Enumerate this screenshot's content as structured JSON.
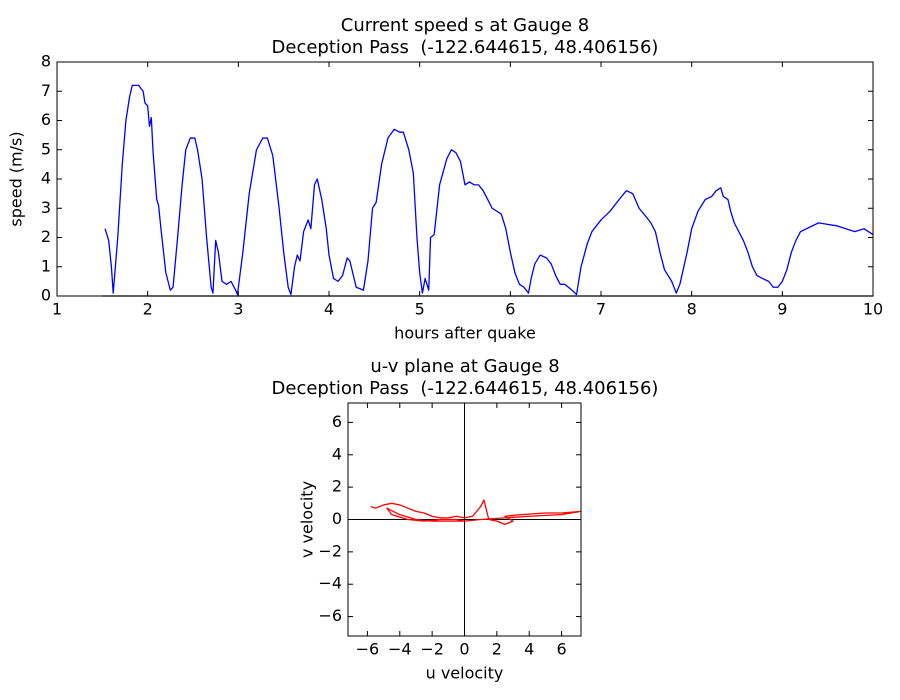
{
  "chart_data": [
    {
      "type": "line",
      "title": "Current speed s at Gauge 8",
      "subtitle": "Deception Pass  (-122.644615, 48.406156)",
      "x_label": "hours after quake",
      "y_label": "speed (m/s)",
      "xlim": [
        1,
        10
      ],
      "ylim": [
        0,
        8
      ],
      "xticks": [
        1,
        2,
        3,
        4,
        5,
        6,
        7,
        8,
        9,
        10
      ],
      "yticks": [
        0,
        1,
        2,
        3,
        4,
        5,
        6,
        7,
        8
      ],
      "series": [
        {
          "color": "#0000ff",
          "x": [
            1.53,
            1.57,
            1.6,
            1.62,
            1.67,
            1.72,
            1.76,
            1.8,
            1.83,
            1.9,
            1.95,
            1.97,
            2.0,
            2.02,
            2.04,
            2.06,
            2.1,
            2.12,
            2.15,
            2.2,
            2.25,
            2.28,
            2.33,
            2.38,
            2.42,
            2.47,
            2.52,
            2.55,
            2.6,
            2.65,
            2.7,
            2.72,
            2.75,
            2.78,
            2.82,
            2.87,
            2.92,
            2.97,
            2.99,
            3.05,
            3.12,
            3.2,
            3.27,
            3.32,
            3.38,
            3.45,
            3.5,
            3.55,
            3.58,
            3.62,
            3.65,
            3.68,
            3.72,
            3.77,
            3.8,
            3.84,
            3.87,
            3.92,
            3.97,
            4.0,
            4.05,
            4.1,
            4.15,
            4.2,
            4.23,
            4.3,
            4.38,
            4.43,
            4.48,
            4.52,
            4.58,
            4.65,
            4.72,
            4.78,
            4.82,
            4.88,
            4.93,
            4.97,
            5.0,
            5.03,
            5.06,
            5.1,
            5.12,
            5.16,
            5.22,
            5.3,
            5.35,
            5.4,
            5.45,
            5.5,
            5.55,
            5.6,
            5.65,
            5.7,
            5.75,
            5.8,
            5.9,
            5.95,
            6.0,
            6.05,
            6.1,
            6.15,
            6.2,
            6.23,
            6.27,
            6.33,
            6.4,
            6.45,
            6.5,
            6.55,
            6.6,
            6.68,
            6.73,
            6.78,
            6.85,
            6.9,
            7.0,
            7.1,
            7.2,
            7.28,
            7.35,
            7.42,
            7.5,
            7.55,
            7.6,
            7.65,
            7.7,
            7.78,
            7.83,
            7.87,
            7.95,
            8.0,
            8.07,
            8.15,
            8.22,
            8.27,
            8.32,
            8.35,
            8.4,
            8.43,
            8.47,
            8.52,
            8.57,
            8.62,
            8.67,
            8.72,
            8.78,
            8.85,
            8.9,
            8.95,
            9.0,
            9.05,
            9.1,
            9.15,
            9.2,
            9.3,
            9.4,
            9.5,
            9.6,
            9.7,
            9.8,
            9.9,
            10.0
          ],
          "values": [
            2.3,
            1.9,
            1.0,
            0.1,
            2.0,
            4.5,
            6.0,
            6.8,
            7.2,
            7.2,
            7.0,
            6.6,
            6.5,
            5.8,
            6.1,
            4.9,
            3.3,
            3.1,
            2.2,
            0.8,
            0.2,
            0.3,
            2.0,
            3.8,
            5.0,
            5.4,
            5.4,
            5.0,
            4.0,
            2.0,
            0.3,
            0.1,
            1.9,
            1.5,
            0.5,
            0.4,
            0.5,
            0.2,
            0.05,
            1.5,
            3.5,
            5.0,
            5.4,
            5.4,
            4.8,
            3.0,
            1.5,
            0.3,
            0.05,
            1.0,
            1.4,
            1.2,
            2.2,
            2.6,
            2.3,
            3.8,
            4.0,
            3.3,
            2.3,
            1.4,
            0.6,
            0.5,
            0.7,
            1.3,
            1.2,
            0.3,
            0.2,
            1.2,
            3.0,
            3.2,
            4.5,
            5.4,
            5.7,
            5.6,
            5.6,
            5.0,
            4.2,
            2.0,
            0.8,
            0.1,
            0.6,
            0.2,
            2.0,
            2.1,
            3.8,
            4.7,
            5.0,
            4.9,
            4.6,
            3.8,
            3.9,
            3.8,
            3.8,
            3.6,
            3.3,
            3.0,
            2.8,
            2.3,
            1.5,
            0.8,
            0.4,
            0.3,
            0.1,
            0.6,
            1.1,
            1.4,
            1.3,
            1.1,
            0.7,
            0.4,
            0.4,
            0.2,
            0.05,
            1.0,
            1.8,
            2.2,
            2.6,
            2.9,
            3.3,
            3.6,
            3.5,
            3.0,
            2.7,
            2.5,
            2.2,
            1.5,
            0.9,
            0.5,
            0.1,
            0.4,
            1.5,
            2.3,
            2.9,
            3.3,
            3.4,
            3.6,
            3.7,
            3.4,
            3.3,
            2.9,
            2.5,
            2.2,
            1.9,
            1.5,
            1.0,
            0.7,
            0.6,
            0.5,
            0.3,
            0.3,
            0.5,
            0.9,
            1.5,
            1.9,
            2.2,
            2.35,
            2.5,
            2.45,
            2.4,
            2.3,
            2.2,
            2.3,
            2.1
          ]
        },
        {
          "color": "#000000",
          "x": [
            1.5,
            10
          ],
          "values": [
            0,
            0
          ]
        }
      ]
    },
    {
      "type": "line",
      "title": "u-v plane at Gauge 8",
      "subtitle": "Deception Pass  (-122.644615, 48.406156)",
      "x_label": "u velocity",
      "y_label": "v velocity",
      "xlim": [
        -7.2,
        7.2
      ],
      "ylim": [
        -7.2,
        7.2
      ],
      "xticks": [
        {
          "value": -6,
          "label": "−6"
        },
        {
          "value": -4,
          "label": "−4"
        },
        {
          "value": -2,
          "label": "−2"
        },
        0,
        2,
        4,
        6
      ],
      "yticks": [
        {
          "value": -6,
          "label": "−6"
        },
        {
          "value": -4,
          "label": "−4"
        },
        {
          "value": -2,
          "label": "−2"
        },
        0,
        2,
        4,
        6
      ],
      "series": [
        {
          "color": "#ff0000",
          "x": [
            -5.8,
            -5.5,
            -5.0,
            -4.5,
            -4.0,
            -3.5,
            -3.0,
            -2.5,
            -2.0,
            -1.5,
            -1.0,
            -0.5,
            0,
            0.5,
            1.0,
            1.2,
            1.4,
            1.5,
            2.0,
            2.5,
            3.0,
            2.5,
            3.5,
            5.0,
            6.0,
            7.2,
            6.0,
            4.0,
            2.5,
            1.0,
            0.0,
            -1.0,
            -2.0,
            -3.0,
            -4.0,
            -4.8,
            -4.5,
            -3.5,
            -2.5,
            -1.5,
            -0.5,
            0.0
          ],
          "values": [
            0.8,
            0.7,
            0.9,
            1.0,
            0.9,
            0.7,
            0.5,
            0.4,
            0.2,
            0.1,
            0.1,
            0.2,
            0.1,
            0.2,
            0.8,
            1.2,
            0.4,
            0.0,
            -0.1,
            -0.3,
            -0.1,
            0.2,
            0.3,
            0.4,
            0.4,
            0.5,
            0.3,
            0.2,
            0.1,
            0.0,
            -0.1,
            -0.1,
            -0.1,
            0.0,
            0.3,
            0.7,
            0.3,
            0.0,
            -0.1,
            0.0,
            0.0,
            -0.1
          ]
        }
      ]
    }
  ]
}
